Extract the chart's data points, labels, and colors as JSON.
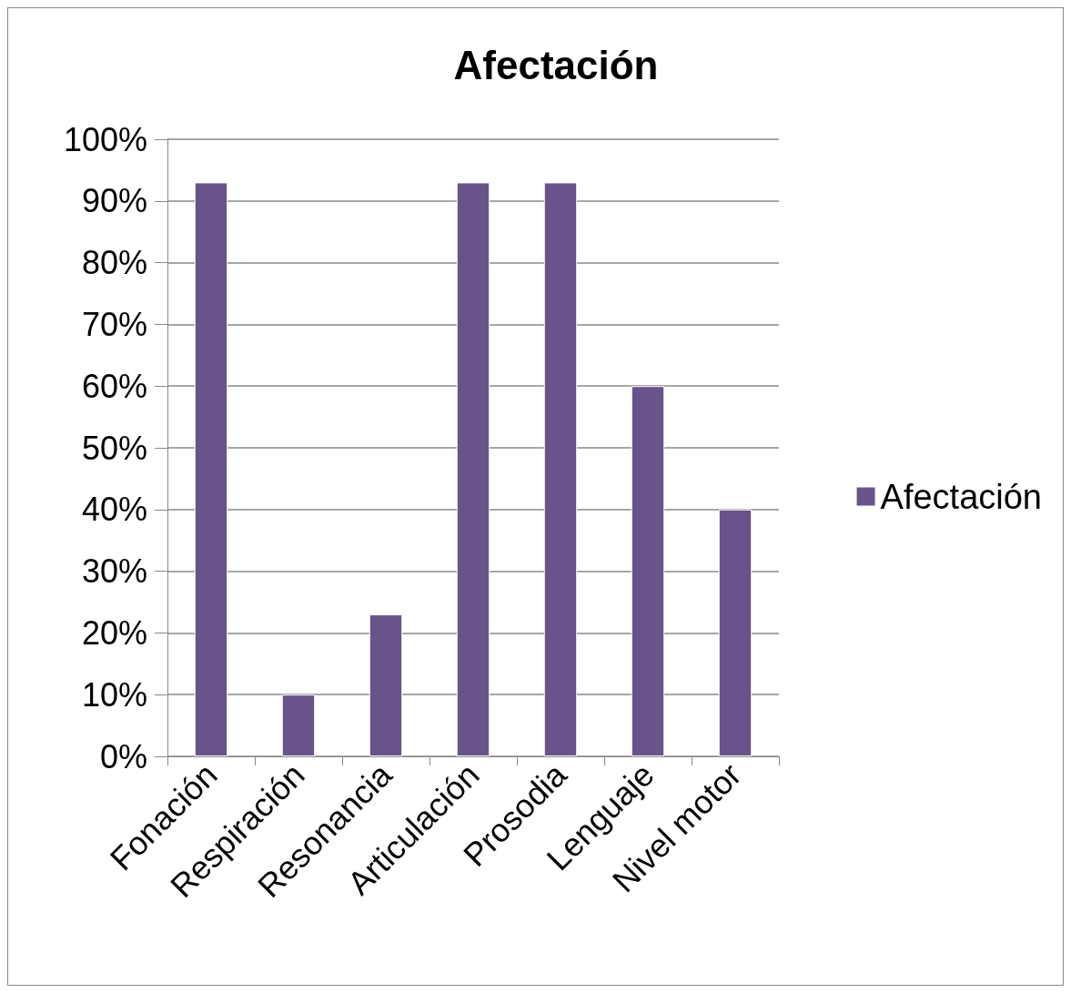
{
  "chart_data": {
    "type": "bar",
    "title": "Afectación",
    "categories": [
      "Fonación",
      "Respiración",
      "Resonancia",
      "Articulación",
      "Prosodia",
      "Lenguaje",
      "Nivel motor"
    ],
    "series": [
      {
        "name": "Afectación",
        "color": "#68538a",
        "values": [
          93,
          10,
          23,
          93,
          93,
          60,
          40
        ]
      }
    ],
    "ylim": [
      0,
      100
    ],
    "yticks": [
      {
        "value": 0,
        "label": "0%"
      },
      {
        "value": 10,
        "label": "10%"
      },
      {
        "value": 20,
        "label": "20%"
      },
      {
        "value": 30,
        "label": "30%"
      },
      {
        "value": 40,
        "label": "40%"
      },
      {
        "value": 50,
        "label": "50%"
      },
      {
        "value": 60,
        "label": "60%"
      },
      {
        "value": 70,
        "label": "70%"
      },
      {
        "value": 80,
        "label": "80%"
      },
      {
        "value": 90,
        "label": "90%"
      },
      {
        "value": 100,
        "label": "100%"
      }
    ],
    "grid": "y",
    "legend": "right"
  }
}
